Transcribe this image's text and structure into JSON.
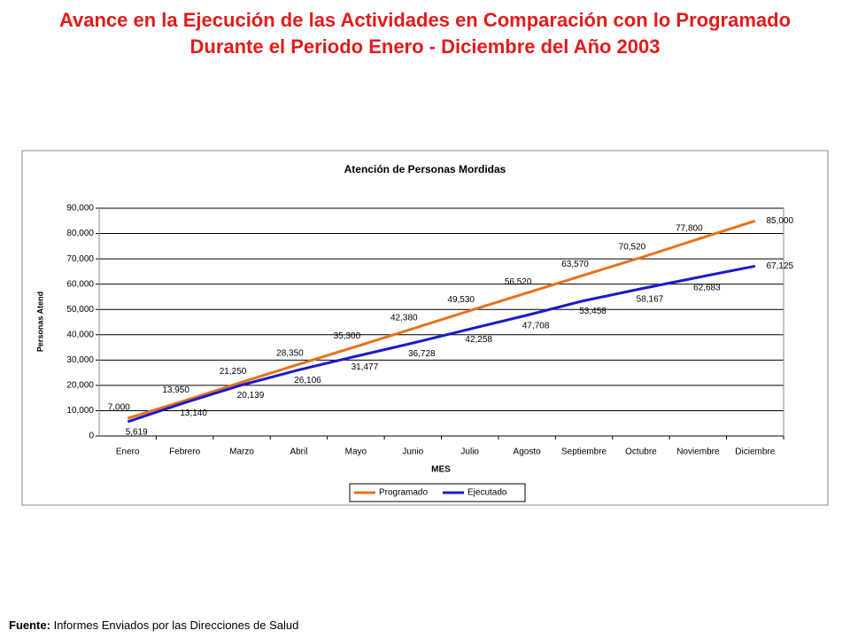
{
  "title": "Avance en la Ejecución de las Actividades en Comparación con lo Programado Durante el Periodo Enero - Diciembre del Año 2003",
  "footer": {
    "label": "Fuente:",
    "text": "Informes Enviados por las Direcciones de Salud"
  },
  "chart_data": {
    "type": "line",
    "title": "Atención de Personas Mordidas",
    "x_label": "MES",
    "y_label": "Personas Atend",
    "categories": [
      "Enero",
      "Febrero",
      "Marzo",
      "Abril",
      "Mayo",
      "Junio",
      "Julio",
      "Agosto",
      "Septiembre",
      "Octubre",
      "Noviembre",
      "Diciembre"
    ],
    "series": [
      {
        "name": "Programado",
        "color": "#e8711c",
        "values": [
          7000,
          13950,
          21250,
          28350,
          35300,
          42380,
          49530,
          56520,
          63570,
          70520,
          77800,
          85000
        ],
        "value_labels": [
          "7,000",
          "13,950",
          "21,250",
          "28,350",
          "35,300",
          "42,380",
          "49,530",
          "56,520",
          "63,570",
          "70,520",
          "77,800",
          "85,000"
        ]
      },
      {
        "name": "Ejecutado",
        "color": "#1a1acc",
        "values": [
          5619,
          13140,
          20139,
          26106,
          31477,
          36728,
          42258,
          47708,
          53458,
          58167,
          62683,
          67125
        ],
        "value_labels": [
          "5,619",
          "13,140",
          "20,139",
          "26,106",
          "31,477",
          "36,728",
          "42,258",
          "47,708",
          "53,458",
          "58,167",
          "62,683",
          "67,125"
        ]
      }
    ],
    "ylim": [
      0,
      90000
    ],
    "yticks": [
      0,
      {
        "value": 10000,
        "label": "10,000"
      },
      {
        "value": 20000,
        "label": "20,000"
      },
      {
        "value": 30000,
        "label": "30,000"
      },
      {
        "value": 40000,
        "label": "40,000"
      },
      {
        "value": 50000,
        "label": "50,000"
      },
      {
        "value": 60000,
        "label": "60,000"
      },
      {
        "value": 70000,
        "label": "70,000"
      },
      {
        "value": 80000,
        "label": "80,000"
      },
      {
        "value": 90000,
        "label": "90,000"
      }
    ],
    "grid": true,
    "legend": "bottom"
  }
}
